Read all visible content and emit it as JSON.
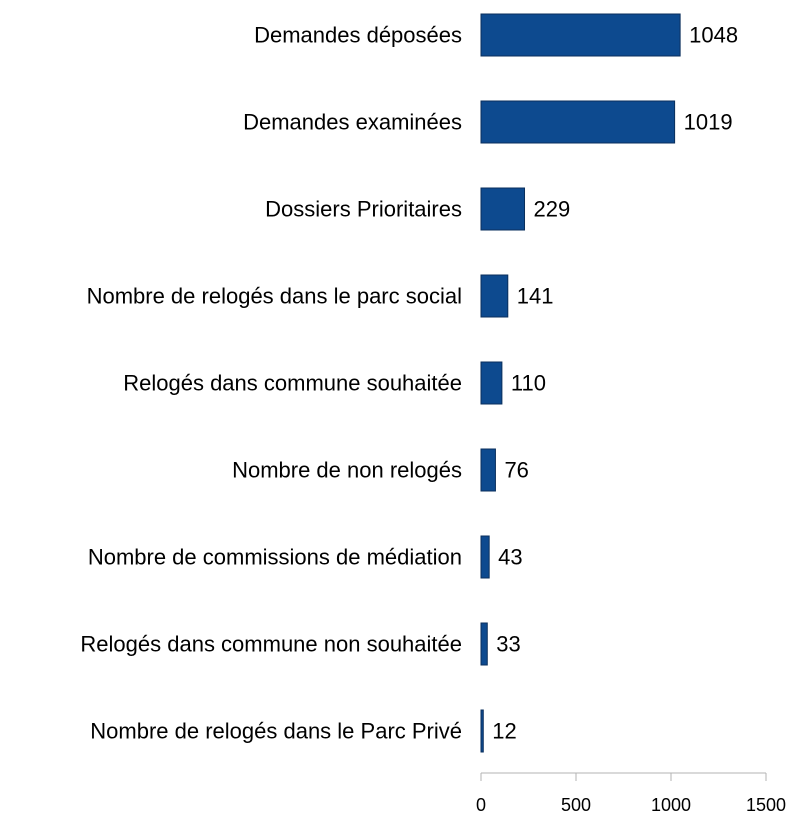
{
  "chart_data": {
    "type": "bar",
    "orientation": "horizontal",
    "categories": [
      "Demandes déposées",
      "Demandes examinées",
      "Dossiers Prioritaires",
      "Nombre de relogés dans le parc social",
      "Relogés dans commune souhaitée",
      "Nombre de non relogés",
      "Nombre de commissions de médiation",
      "Relogés dans commune non souhaitée",
      "Nombre de relogés dans le Parc Privé"
    ],
    "values": [
      1048,
      1019,
      229,
      141,
      110,
      76,
      43,
      33,
      12
    ],
    "value_labels": [
      "1048",
      "1019",
      "229",
      "141",
      "110",
      "76",
      "43",
      "33",
      "12"
    ],
    "xlim": [
      0,
      1500
    ],
    "x_ticks": [
      0,
      500,
      1000,
      1500
    ],
    "x_tick_labels": [
      "0",
      "500",
      "1000",
      "1500"
    ],
    "grid": false,
    "legend": "none",
    "bar_color": "#0d4a8f",
    "bar_outline_color": "#0a2f5c"
  }
}
